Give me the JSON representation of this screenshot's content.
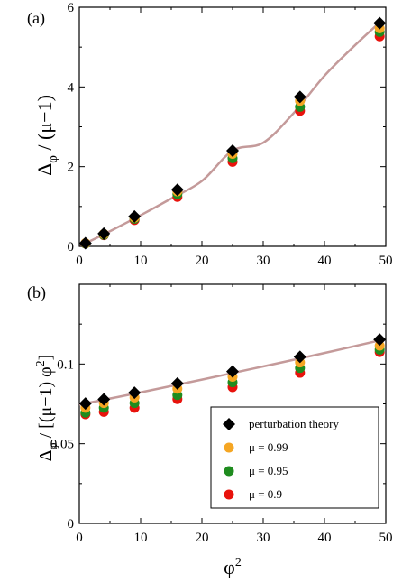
{
  "chart_data": [
    {
      "type": "scatter",
      "panel_label": "(a)",
      "xlabel": "",
      "ylabel_main": "Δ",
      "ylabel_sub": "φ",
      "ylabel_rest": " / (μ−1)",
      "xlim": [
        0,
        50
      ],
      "ylim": [
        0,
        6
      ],
      "xticks": [
        0,
        10,
        20,
        30,
        40,
        50
      ],
      "yticks": [
        0,
        2,
        4,
        6
      ],
      "x": [
        1,
        4,
        9,
        16,
        25,
        36,
        49
      ],
      "series": [
        {
          "name": "perturbation theory",
          "marker": "diamond",
          "color": "#000000",
          "values": [
            0.08,
            0.32,
            0.75,
            1.42,
            2.4,
            3.75,
            5.6
          ]
        },
        {
          "name": "μ = 0.99",
          "marker": "circle",
          "color": "#f5a623",
          "values": [
            0.08,
            0.31,
            0.72,
            1.38,
            2.32,
            3.65,
            5.47
          ]
        },
        {
          "name": "μ = 0.95",
          "marker": "circle",
          "color": "#1f8c1f",
          "values": [
            0.07,
            0.29,
            0.69,
            1.31,
            2.21,
            3.5,
            5.38
          ]
        },
        {
          "name": "μ = 0.9",
          "marker": "circle",
          "color": "#e8120c",
          "values": [
            0.07,
            0.28,
            0.66,
            1.24,
            2.12,
            3.4,
            5.27
          ]
        }
      ],
      "curve": {
        "color": "#c49a9a",
        "x": [
          0,
          5,
          10,
          15,
          20,
          25,
          30,
          35,
          40,
          45,
          49
        ],
        "values": [
          0.0,
          0.38,
          0.78,
          1.2,
          1.64,
          2.4,
          2.6,
          3.35,
          4.28,
          5.05,
          5.62
        ]
      }
    },
    {
      "type": "scatter",
      "panel_label": "(b)",
      "xlabel_main": "φ",
      "xlabel_sup": "2",
      "ylabel_main": "Δ",
      "ylabel_sub": "φ",
      "ylabel_rest": " / [(μ−1) φ",
      "ylabel_sup": "2",
      "ylabel_end": "]",
      "xlim": [
        0,
        50
      ],
      "ylim": [
        0,
        0.15
      ],
      "xticks": [
        0,
        10,
        20,
        30,
        40,
        50
      ],
      "yticks": [
        0,
        0.05,
        0.1
      ],
      "ytick_labels": [
        "0",
        "0.05",
        "0.1"
      ],
      "x": [
        1,
        4,
        9,
        16,
        25,
        36,
        49
      ],
      "series": [
        {
          "name": "perturbation theory",
          "marker": "diamond",
          "color": "#000000",
          "values": [
            0.0752,
            0.0778,
            0.082,
            0.0878,
            0.0953,
            0.1045,
            0.1153
          ]
        },
        {
          "name": "μ = 0.99",
          "marker": "circle",
          "color": "#f5a623",
          "values": [
            0.0725,
            0.0755,
            0.079,
            0.0845,
            0.092,
            0.101,
            0.1115
          ]
        },
        {
          "name": "μ = 0.95",
          "marker": "circle",
          "color": "#1f8c1f",
          "values": [
            0.0695,
            0.0725,
            0.0755,
            0.0805,
            0.0885,
            0.0975,
            0.109
          ]
        },
        {
          "name": "μ = 0.9",
          "marker": "circle",
          "color": "#e8120c",
          "values": [
            0.0685,
            0.07,
            0.0725,
            0.078,
            0.0855,
            0.0945,
            0.1075
          ]
        }
      ],
      "curve": {
        "color": "#c49a9a",
        "x": [
          0,
          10,
          20,
          30,
          40,
          49
        ],
        "values": [
          0.0745,
          0.0822,
          0.0902,
          0.0985,
          0.1069,
          0.1148
        ]
      },
      "legend": {
        "placement": "bottom-right",
        "entries": [
          "perturbation theory",
          "μ = 0.99",
          "μ = 0.95",
          "μ = 0.9"
        ]
      }
    }
  ]
}
